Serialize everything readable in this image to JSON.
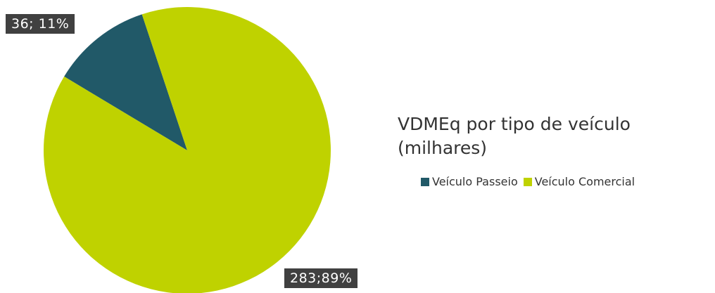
{
  "chart_data": {
    "type": "pie",
    "title": "VDMEq por tipo de veículo (milhares)",
    "categories": [
      "Veículo Passeio",
      "Veículo Comercial"
    ],
    "values": [
      36,
      283
    ],
    "value_labels": [
      "36; 11%",
      "283;89%"
    ],
    "colors": [
      "#215968",
      "#bfd200"
    ],
    "legend": "right"
  }
}
